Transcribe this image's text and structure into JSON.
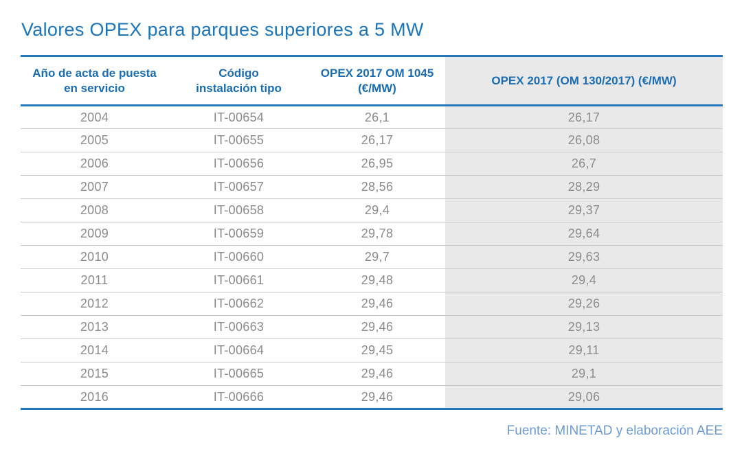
{
  "title": "Valores OPEX para parques superiores a 5 MW",
  "header": {
    "col1_line1": "Año de acta de puesta",
    "col1_line2": "en servicio",
    "col2_line1": "Código",
    "col2_line2": "instalación tipo",
    "col3_line1": "OPEX 2017 OM 1045",
    "col3_line2": "(€/MW)",
    "col4_line1": "OPEX 2017 (OM 130/2017) (€/MW)"
  },
  "chart_data": {
    "type": "table",
    "title": "Valores OPEX para parques superiores a 5 MW",
    "columns": [
      "Año de acta de puesta en servicio",
      "Código instalación tipo",
      "OPEX 2017 OM 1045 (€/MW)",
      "OPEX 2017 (OM 130/2017) (€/MW)"
    ],
    "rows": [
      [
        "2004",
        "IT-00654",
        "26,1",
        "26,17"
      ],
      [
        "2005",
        "IT-00655",
        "26,17",
        "26,08"
      ],
      [
        "2006",
        "IT-00656",
        "26,95",
        "26,7"
      ],
      [
        "2007",
        "IT-00657",
        "28,56",
        "28,29"
      ],
      [
        "2008",
        "IT-00658",
        "29,4",
        "29,37"
      ],
      [
        "2009",
        "IT-00659",
        "29,78",
        "29,64"
      ],
      [
        "2010",
        "IT-00660",
        "29,7",
        "29,63"
      ],
      [
        "2011",
        "IT-00661",
        "29,48",
        "29,4"
      ],
      [
        "2012",
        "IT-00662",
        "29,46",
        "29,26"
      ],
      [
        "2013",
        "IT-00663",
        "29,46",
        "29,13"
      ],
      [
        "2014",
        "IT-00664",
        "29,45",
        "29,11"
      ],
      [
        "2015",
        "IT-00665",
        "29,46",
        "29,1"
      ],
      [
        "2016",
        "IT-00666",
        "29,46",
        "29,06"
      ]
    ],
    "numeric_series": [
      {
        "name": "OPEX 2017 OM 1045 (€/MW)",
        "values": [
          26.1,
          26.17,
          26.95,
          28.56,
          29.4,
          29.78,
          29.7,
          29.48,
          29.46,
          29.46,
          29.45,
          29.46,
          29.46
        ]
      },
      {
        "name": "OPEX 2017 (OM 130/2017) (€/MW)",
        "values": [
          26.17,
          26.08,
          26.7,
          28.29,
          29.37,
          29.64,
          29.63,
          29.4,
          29.26,
          29.13,
          29.11,
          29.1,
          29.06
        ]
      }
    ],
    "source": "Fuente: MINETAD y elaboración AEE"
  },
  "footer": {
    "source": "Fuente: MINETAD y elaboración AEE"
  },
  "colors": {
    "accent_blue": "#1b75bc",
    "header_text": "#1a6db4",
    "line_blue": "#2577b9",
    "cell_text": "#8b8b8b",
    "shade_bg": "#e9e9e9",
    "row_divider": "#c9c9c9",
    "footer_text": "#6d9bd2"
  }
}
